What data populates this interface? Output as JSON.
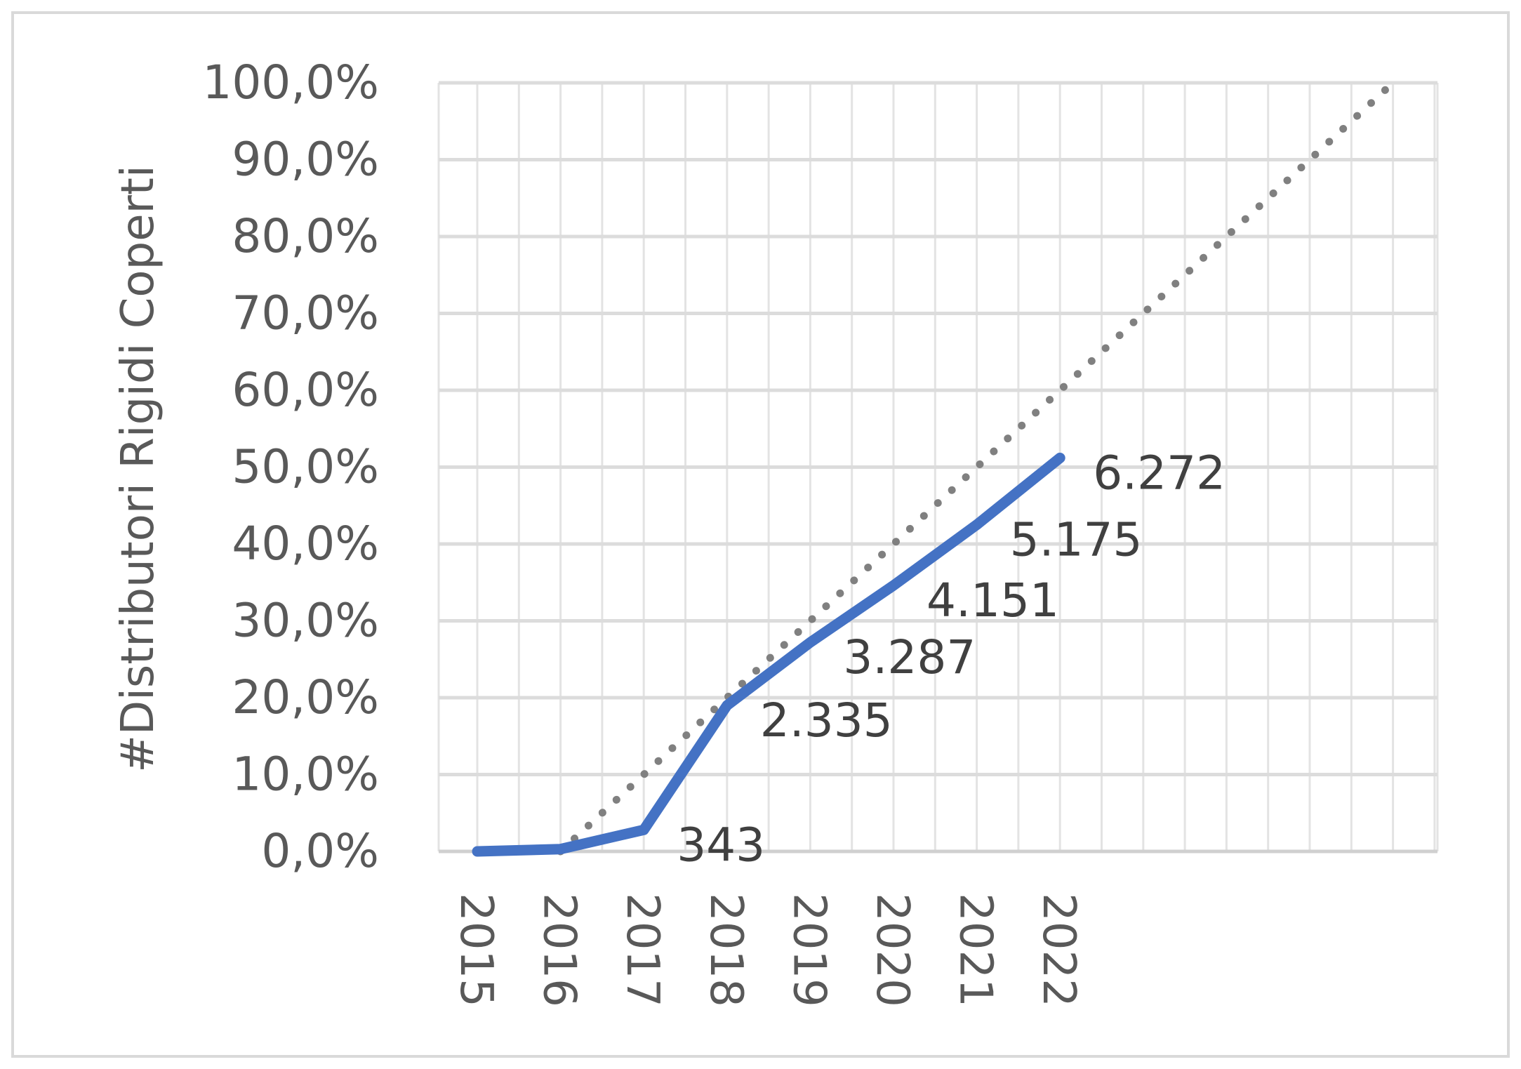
{
  "chart_data": {
    "type": "line",
    "title": "",
    "xlabel": "",
    "ylabel": "#Distributori Rigidi Coperti",
    "categories": [
      "2015",
      "2016",
      "2017",
      "2018",
      "2019",
      "2020",
      "2021",
      "2022"
    ],
    "series": [
      {
        "values": [
          0.0,
          0.3,
          2.8,
          19.0,
          27.2,
          34.6,
          42.5,
          51.2
        ],
        "data_labels": [
          "",
          "",
          "343",
          "2.335",
          "3.287",
          "4.151",
          "5.175",
          "6.272"
        ],
        "color": "#4472c4",
        "style": "solid"
      },
      {
        "type": "trendline",
        "x_range": [
          2016,
          2026
        ],
        "y_range": [
          0.0,
          100.0
        ],
        "color": "#808080",
        "style": "dotted"
      }
    ],
    "ylim": [
      0,
      100
    ],
    "yticks": [
      "0,0%",
      "10,0%",
      "20,0%",
      "30,0%",
      "40,0%",
      "50,0%",
      "60,0%",
      "70,0%",
      "80,0%",
      "90,0%",
      "100,0%"
    ],
    "grid": true,
    "legend": "none"
  }
}
